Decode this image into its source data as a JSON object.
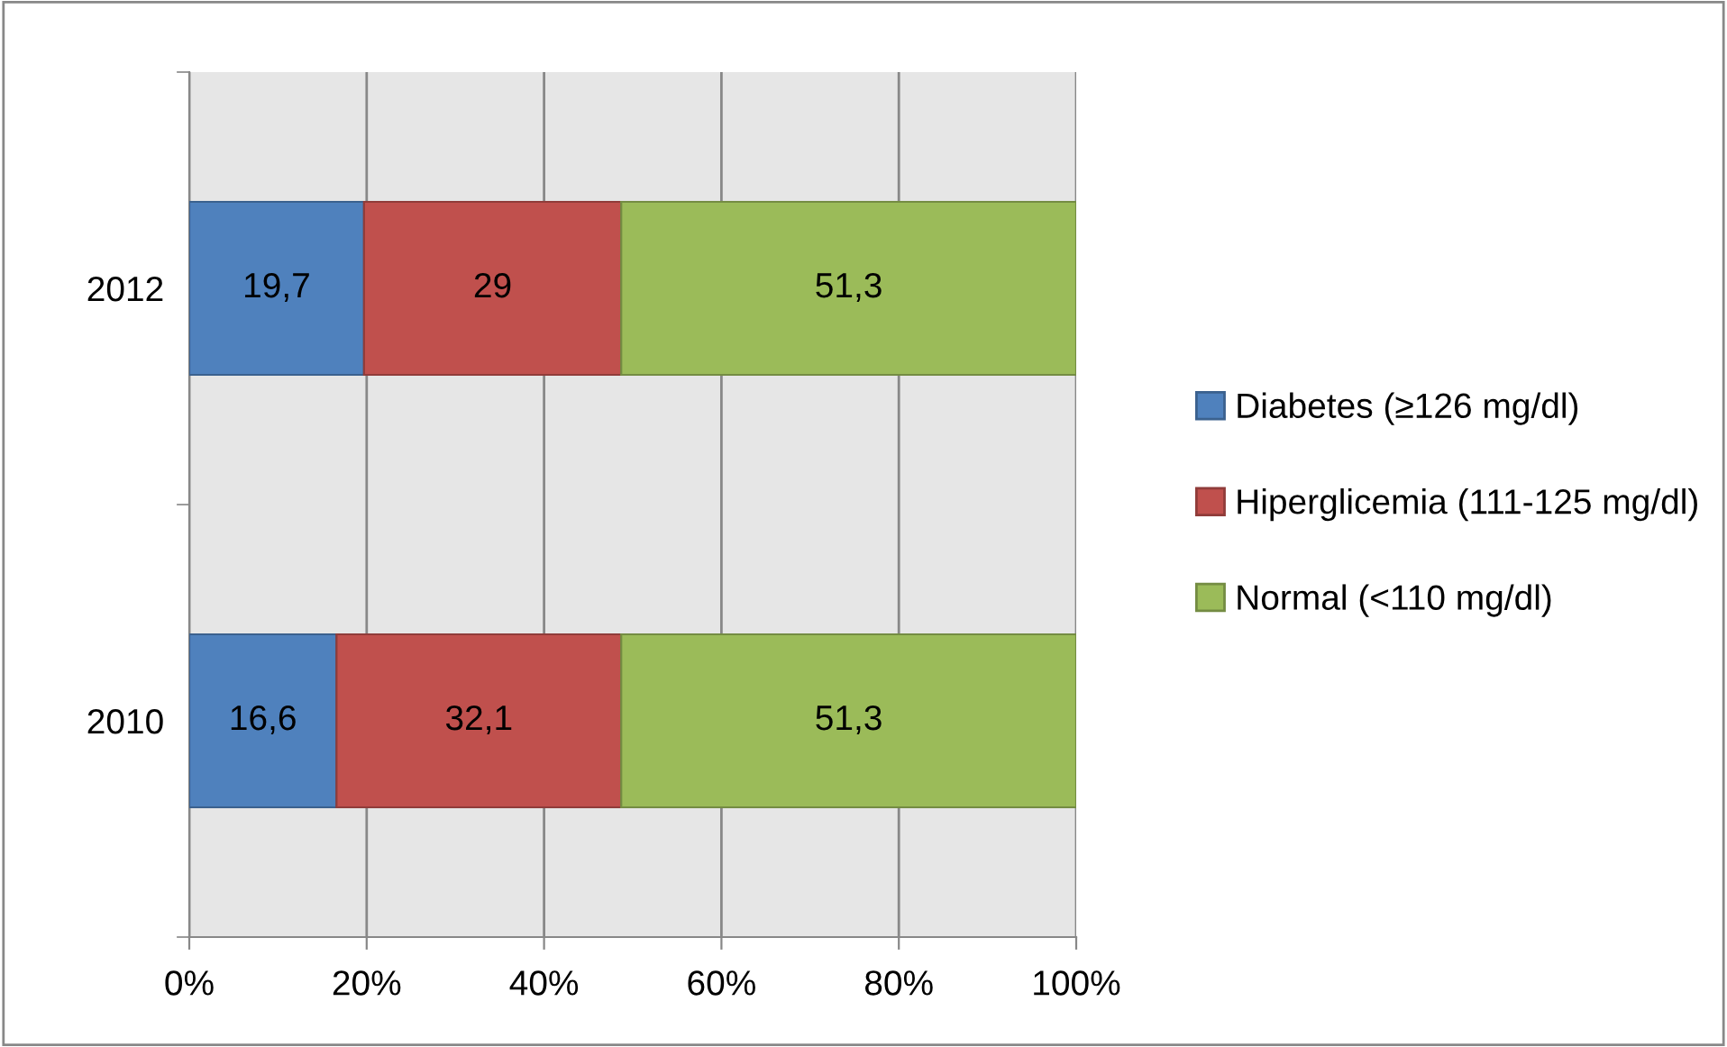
{
  "chart_data": {
    "type": "bar",
    "orientation": "horizontal",
    "stacked": true,
    "categories": [
      "2012",
      "2010"
    ],
    "series": [
      {
        "name": "Diabetes (≥126 mg/dl)",
        "color": "#4f81bd",
        "values": [
          19.7,
          16.6
        ],
        "value_labels": [
          "19,7",
          "16,6"
        ]
      },
      {
        "name": "Hiperglicemia (111-125 mg/dl)",
        "color": "#c0504d",
        "values": [
          29,
          32.1
        ],
        "value_labels": [
          "29",
          "32,1"
        ]
      },
      {
        "name": "Normal (<110 mg/dl)",
        "color": "#9bbb59",
        "values": [
          51.3,
          51.3
        ],
        "value_labels": [
          "51,3",
          "51,3"
        ]
      }
    ],
    "xlim": [
      0,
      100
    ],
    "xticks": [
      {
        "value": 0,
        "label": "0%"
      },
      {
        "value": 20,
        "label": "20%"
      },
      {
        "value": 40,
        "label": "40%"
      },
      {
        "value": 60,
        "label": "60%"
      },
      {
        "value": 80,
        "label": "80%"
      },
      {
        "value": 100,
        "label": "100%"
      }
    ],
    "grid": "x",
    "legend": "right"
  }
}
